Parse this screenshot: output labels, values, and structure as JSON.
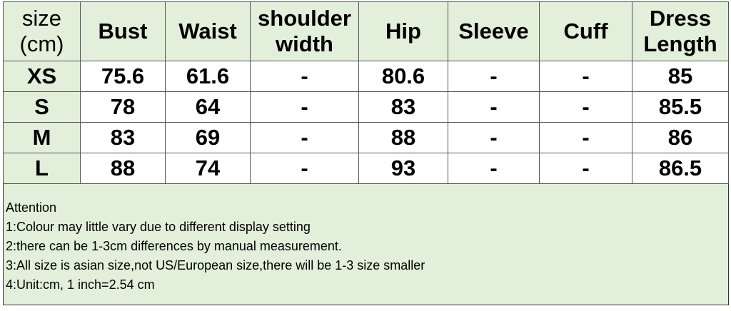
{
  "headers": [
    {
      "line1": "size",
      "line2": "(cm)"
    },
    {
      "line1": "Bust",
      "line2": ""
    },
    {
      "line1": "Waist",
      "line2": ""
    },
    {
      "line1": "shoulder",
      "line2": "width"
    },
    {
      "line1": "Hip",
      "line2": ""
    },
    {
      "line1": "Sleeve",
      "line2": ""
    },
    {
      "line1": "Cuff",
      "line2": ""
    },
    {
      "line1": "Dress",
      "line2": "Length"
    }
  ],
  "rows": [
    [
      "XS",
      "75.6",
      "61.6",
      "-",
      "80.6",
      "-",
      "-",
      "85"
    ],
    [
      "S",
      "78",
      "64",
      "-",
      "83",
      "-",
      "-",
      "85.5"
    ],
    [
      "M",
      "83",
      "69",
      "-",
      "88",
      "-",
      "-",
      "86"
    ],
    [
      "L",
      "88",
      "74",
      "-",
      "93",
      "-",
      "-",
      "86.5"
    ]
  ],
  "notes": [
    "Attention",
    "1:Colour may little vary due to different display setting",
    "2:there can be 1-3cm differences by manual measurement.",
    "3:All size is asian size,not US/European size,there will be 1-3 size smaller",
    "4:Unit:cm, 1 inch=2.54 cm"
  ],
  "colors": {
    "header_bg": "#e2efda",
    "cell_bg": "#ffffff",
    "border": "#555555"
  }
}
